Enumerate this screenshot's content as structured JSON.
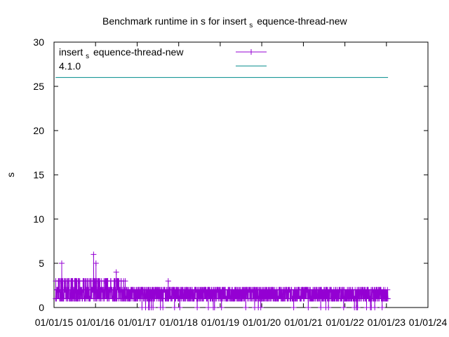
{
  "chart_data": {
    "type": "line",
    "title_main": "Benchmark runtime in s for insert",
    "title_sub": "s",
    "title_tail": "equence-thread-new",
    "ylabel": "s",
    "xlabel": "",
    "ylim": [
      0,
      30
    ],
    "xlim": [
      "2015-01-01",
      "2024-01-01"
    ],
    "y_ticks": [
      "0",
      "5",
      "10",
      "15",
      "20",
      "25",
      "30"
    ],
    "x_ticks": [
      "01/01/15",
      "01/01/16",
      "01/01/17",
      "01/01/18",
      "01/01/19",
      "01/01/20",
      "01/01/21",
      "01/01/22",
      "01/01/23",
      "01/01/24"
    ],
    "grid": false,
    "legend_position": "top-left",
    "series": [
      {
        "name_main": "insert",
        "name_sub": "s",
        "name_tail": "equence-thread-new",
        "color": "#9400d3",
        "marker": "plus",
        "x_range": [
          "2015-01-15",
          "2023-01-15"
        ],
        "typical_values": [
          1,
          2,
          3
        ],
        "peak_values": [
          {
            "x": "2015-03-10",
            "y": 5
          },
          {
            "x": "2015-12-15",
            "y": 6
          },
          {
            "x": "2016-01-05",
            "y": 5
          },
          {
            "x": "2016-07-01",
            "y": 4
          },
          {
            "x": "2017-10-01",
            "y": 3
          }
        ]
      },
      {
        "name": "4.1.0",
        "color": "#008b8b",
        "marker": "none",
        "x": [
          "2015-01-15",
          "2023-01-15"
        ],
        "values": [
          26,
          26
        ]
      }
    ]
  }
}
